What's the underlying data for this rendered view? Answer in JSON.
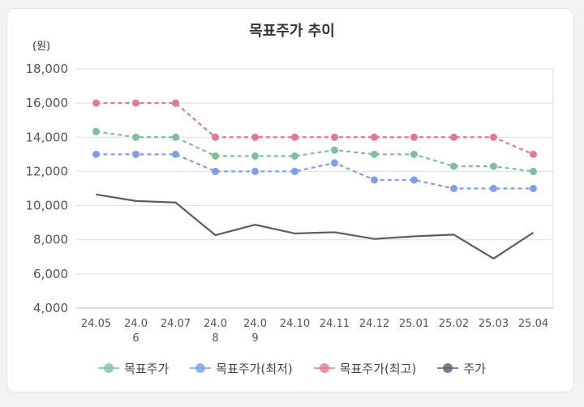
{
  "chart_data": {
    "type": "line",
    "title": "목표주가 추이",
    "ylabel": "(원)",
    "xlabel": "",
    "categories": [
      "24.05",
      "24.06",
      "24.07",
      "24.08",
      "24.09",
      "24.10",
      "24.11",
      "24.12",
      "25.01",
      "25.02",
      "25.03",
      "25.04"
    ],
    "category_lines": [
      [
        "24.05"
      ],
      [
        "24.0",
        "6"
      ],
      [
        "24.07"
      ],
      [
        "24.0",
        "8"
      ],
      [
        "24.0",
        "9"
      ],
      [
        "24.10"
      ],
      [
        "24.11"
      ],
      [
        "24.12"
      ],
      [
        "25.01"
      ],
      [
        "25.02"
      ],
      [
        "25.03"
      ],
      [
        "25.04"
      ]
    ],
    "ylim": [
      4000,
      18000
    ],
    "yticks": [
      4000,
      6000,
      8000,
      10000,
      12000,
      14000,
      16000,
      18000
    ],
    "ytick_labels": [
      "4,000",
      "6,000",
      "8,000",
      "10,000",
      "12,000",
      "14,000",
      "16,000",
      "18,000"
    ],
    "grid": true,
    "legend_position": "bottom",
    "series": [
      {
        "name": "목표주가",
        "color": "#7fbf99",
        "dashed": true,
        "values": [
          14333,
          14000,
          14000,
          12900,
          12900,
          12900,
          13250,
          13000,
          13000,
          12300,
          12300,
          12000
        ]
      },
      {
        "name": "목표주가(최저)",
        "color": "#7f9ee8",
        "dashed": true,
        "values": [
          13000,
          13000,
          13000,
          12000,
          12000,
          12000,
          12500,
          11500,
          11500,
          11000,
          11000,
          11000
        ]
      },
      {
        "name": "목표주가(최고)",
        "color": "#e07a8e",
        "dashed": true,
        "values": [
          16000,
          16000,
          16000,
          14000,
          14000,
          14000,
          14000,
          14000,
          14000,
          14000,
          14000,
          13000
        ]
      },
      {
        "name": "주가",
        "color": "#5a5b6e",
        "dashed": false,
        "markers": false,
        "values": [
          10650,
          10270,
          10180,
          8270,
          8880,
          8370,
          8440,
          8050,
          8200,
          8300,
          6900,
          8420
        ]
      }
    ]
  }
}
